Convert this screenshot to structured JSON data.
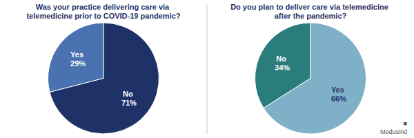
{
  "chart_data": [
    {
      "type": "pie",
      "title": "Was your practice delivering care via\ntelemedicine prior to COVID-19 pandemic?",
      "categories": [
        "Yes",
        "No"
      ],
      "values": [
        29,
        71
      ],
      "value_labels": [
        "29%",
        "71%"
      ],
      "colors": [
        "#4A72B0",
        "#1F3268"
      ],
      "data_labels": true
    },
    {
      "type": "pie",
      "title": "Do you plan to deliver care via telemedicine\nafter the pandemic?",
      "categories": [
        "No",
        "Yes"
      ],
      "values": [
        34,
        66
      ],
      "value_labels": [
        "34%",
        "66%"
      ],
      "colors": [
        "#2B7D7D",
        "#7EB0C8"
      ],
      "data_labels": true,
      "annotations": [
        "■",
        "Medusind"
      ]
    }
  ]
}
